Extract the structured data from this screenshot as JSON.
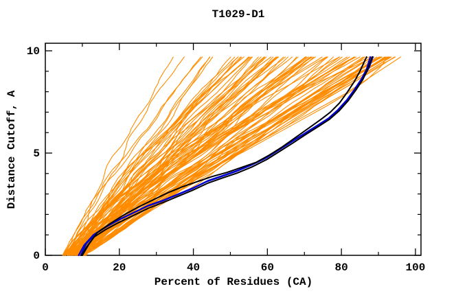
{
  "page": {
    "background": "#ffffff"
  },
  "chart_data": {
    "type": "line",
    "title": "T1029-D1",
    "xlabel": "Percent of Residues (CA)",
    "ylabel": "Distance Cutoff, A",
    "xlim": [
      0,
      101.5
    ],
    "ylim": [
      0,
      10.37
    ],
    "x_major_ticks": [
      0,
      20,
      40,
      60,
      80,
      100
    ],
    "x_minor_ticks": [
      10,
      30,
      50,
      70,
      90
    ],
    "y_major_ticks": [
      0,
      5,
      10
    ],
    "y_minor_ticks": [
      1,
      2,
      3,
      4,
      6,
      7,
      8,
      9
    ],
    "grid": false,
    "legend": null,
    "colors": {
      "background": "#ffffff",
      "axis": "#000000",
      "predictions": "#ff8c00",
      "highlight_blue": "#0000cd",
      "highlight_black": "#000000"
    },
    "background_curves": {
      "count": 88,
      "seed": 20029,
      "color_key": "predictions",
      "stroke_width": 1.1,
      "x_start_range": [
        4.5,
        11
      ],
      "x_end_range": [
        31,
        95
      ],
      "end_bias_exponent": 0.72,
      "shape_exponent_range": [
        0.8,
        1.65
      ],
      "blend_range": [
        0.25,
        0.75
      ],
      "wiggle_amplitude_range": [
        0.7,
        2.3
      ],
      "jitter": 0.25,
      "y_top": 9.7,
      "samples": 44
    },
    "extra_orange_curves": [
      [
        [
          8,
          0
        ],
        [
          13,
          0.7
        ],
        [
          19,
          1.4
        ],
        [
          26,
          2.2
        ],
        [
          33,
          3.0
        ],
        [
          40,
          3.8
        ],
        [
          47,
          4.5
        ],
        [
          54,
          5.2
        ],
        [
          61,
          5.9
        ],
        [
          68,
          6.6
        ],
        [
          75,
          7.3
        ],
        [
          81,
          7.9
        ],
        [
          86,
          8.5
        ],
        [
          91,
          9.1
        ],
        [
          96,
          9.7
        ]
      ],
      [
        [
          7,
          0
        ],
        [
          14,
          0.9
        ],
        [
          22,
          1.8
        ],
        [
          30,
          2.7
        ],
        [
          38,
          3.55
        ],
        [
          46,
          4.35
        ],
        [
          54,
          5.1
        ],
        [
          62,
          5.9
        ],
        [
          69,
          6.6
        ],
        [
          76,
          7.3
        ],
        [
          82,
          7.95
        ],
        [
          87,
          8.6
        ],
        [
          90.5,
          9.2
        ],
        [
          92.5,
          9.7
        ]
      ]
    ],
    "highlighted_curves": [
      {
        "name": "model-blue-1",
        "color": "#0000cd",
        "width": 2.2,
        "points": [
          [
            9,
            0
          ],
          [
            10.5,
            0.5
          ],
          [
            13,
            1.0
          ],
          [
            16,
            1.35
          ],
          [
            19.5,
            1.7
          ],
          [
            23.5,
            2.05
          ],
          [
            27.5,
            2.4
          ],
          [
            31.5,
            2.65
          ],
          [
            35.5,
            2.95
          ],
          [
            39.5,
            3.25
          ],
          [
            43.5,
            3.6
          ],
          [
            47.5,
            3.85
          ],
          [
            51.5,
            4.1
          ],
          [
            55.5,
            4.4
          ],
          [
            59.5,
            4.75
          ],
          [
            63,
            5.15
          ],
          [
            66.5,
            5.55
          ],
          [
            70,
            5.95
          ],
          [
            73.5,
            6.35
          ],
          [
            76.5,
            6.7
          ],
          [
            79,
            7.1
          ],
          [
            81.5,
            7.6
          ],
          [
            83.5,
            8.1
          ],
          [
            85.5,
            8.65
          ],
          [
            86.8,
            9.1
          ],
          [
            87.8,
            9.7
          ]
        ]
      },
      {
        "name": "model-blue-2",
        "color": "#0000cd",
        "width": 2.2,
        "points": [
          [
            9.6,
            0
          ],
          [
            11,
            0.55
          ],
          [
            13.5,
            1.05
          ],
          [
            16.5,
            1.4
          ],
          [
            20,
            1.75
          ],
          [
            24,
            2.1
          ],
          [
            28,
            2.45
          ],
          [
            32,
            2.7
          ],
          [
            36,
            3.0
          ],
          [
            40,
            3.3
          ],
          [
            44,
            3.65
          ],
          [
            48,
            3.9
          ],
          [
            52,
            4.15
          ],
          [
            56,
            4.45
          ],
          [
            60,
            4.8
          ],
          [
            63.5,
            5.2
          ],
          [
            67,
            5.6
          ],
          [
            70.5,
            6.0
          ],
          [
            74,
            6.4
          ],
          [
            77,
            6.75
          ],
          [
            79.5,
            7.15
          ],
          [
            82,
            7.65
          ],
          [
            84,
            8.15
          ],
          [
            86,
            8.7
          ],
          [
            87.5,
            9.2
          ],
          [
            88.5,
            9.7
          ]
        ]
      },
      {
        "name": "model-black-1",
        "color": "#000000",
        "width": 2,
        "points": [
          [
            10,
            0
          ],
          [
            11.8,
            0.55
          ],
          [
            14,
            1.1
          ],
          [
            17.5,
            1.55
          ],
          [
            21,
            1.95
          ],
          [
            25,
            2.35
          ],
          [
            29,
            2.7
          ],
          [
            33,
            3.05
          ],
          [
            37,
            3.35
          ],
          [
            41,
            3.6
          ],
          [
            45,
            3.85
          ],
          [
            49,
            4.05
          ],
          [
            53,
            4.3
          ],
          [
            57,
            4.55
          ],
          [
            60.5,
            4.9
          ],
          [
            64,
            5.3
          ],
          [
            67.5,
            5.75
          ],
          [
            71,
            6.2
          ],
          [
            74.5,
            6.65
          ],
          [
            77,
            7.0
          ],
          [
            79.5,
            7.45
          ],
          [
            81.5,
            7.95
          ],
          [
            83.5,
            8.5
          ],
          [
            85,
            9.0
          ],
          [
            86,
            9.4
          ],
          [
            86.8,
            9.7
          ]
        ]
      },
      {
        "name": "model-black-2",
        "color": "#000000",
        "width": 2,
        "points": [
          [
            9.8,
            0
          ],
          [
            11.3,
            0.45
          ],
          [
            13.2,
            0.9
          ],
          [
            16.2,
            1.25
          ],
          [
            19.8,
            1.6
          ],
          [
            23.8,
            1.95
          ],
          [
            27.8,
            2.3
          ],
          [
            31.8,
            2.58
          ],
          [
            35.8,
            2.88
          ],
          [
            39.8,
            3.18
          ],
          [
            43.8,
            3.52
          ],
          [
            47.8,
            3.78
          ],
          [
            51.8,
            4.02
          ],
          [
            55.8,
            4.32
          ],
          [
            59.8,
            4.68
          ],
          [
            63.3,
            5.08
          ],
          [
            66.8,
            5.48
          ],
          [
            70.3,
            5.9
          ],
          [
            73.8,
            6.3
          ],
          [
            76.8,
            6.65
          ],
          [
            79.3,
            7.05
          ],
          [
            81.8,
            7.55
          ],
          [
            83.8,
            8.05
          ],
          [
            85.8,
            8.6
          ],
          [
            87.2,
            9.15
          ],
          [
            88.3,
            9.7
          ]
        ]
      }
    ]
  }
}
